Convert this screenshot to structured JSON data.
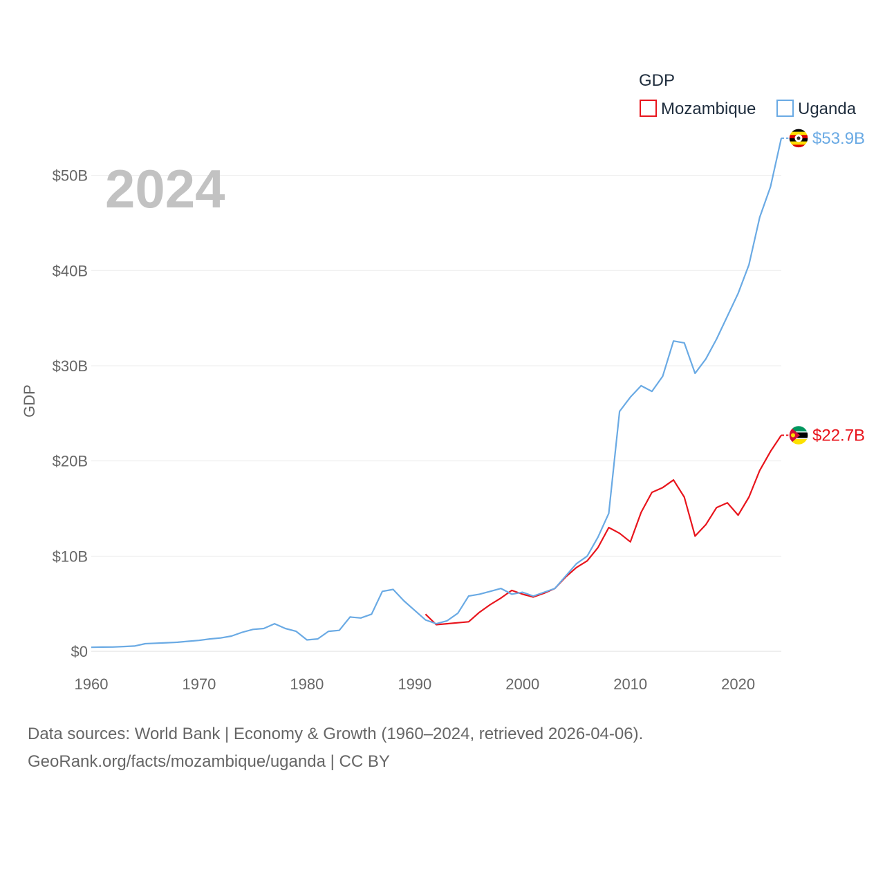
{
  "chart_data": {
    "type": "line",
    "title": "GDP",
    "current_year_label": "2024",
    "xlabel": "",
    "ylabel": "GDP",
    "xlim": [
      1960,
      2024
    ],
    "ylim": [
      0,
      56
    ],
    "x_ticks": [
      1960,
      1970,
      1980,
      1990,
      2000,
      2010,
      2020
    ],
    "x_tick_labels": [
      "1960",
      "1970",
      "1980",
      "1990",
      "2000",
      "2010",
      "2020"
    ],
    "y_ticks": [
      0,
      10,
      20,
      30,
      40,
      50
    ],
    "y_tick_labels": [
      "$0",
      "$10B",
      "$20B",
      "$30B",
      "$40B",
      "$50B"
    ],
    "units": "billions USD",
    "legend": {
      "title": "GDP",
      "placement": "top-right"
    },
    "series": [
      {
        "name": "Mozambique",
        "color": "#e8141c",
        "flag_icon": "mozambique-flag-icon",
        "end_label": "$22.7B",
        "x": [
          1991,
          1992,
          1993,
          1994,
          1995,
          1996,
          1997,
          1998,
          1999,
          2000,
          2001,
          2002,
          2003,
          2004,
          2005,
          2006,
          2007,
          2008,
          2009,
          2010,
          2011,
          2012,
          2013,
          2014,
          2015,
          2016,
          2017,
          2018,
          2019,
          2020,
          2021,
          2022,
          2023,
          2024
        ],
        "values": [
          3.9,
          2.8,
          2.9,
          3.0,
          3.1,
          4.1,
          4.9,
          5.6,
          6.4,
          6.0,
          5.7,
          6.1,
          6.6,
          7.8,
          8.8,
          9.5,
          10.9,
          13.0,
          12.4,
          11.5,
          14.6,
          16.7,
          17.2,
          18.0,
          16.2,
          12.1,
          13.3,
          15.1,
          15.6,
          14.3,
          16.2,
          19.0,
          21.0,
          22.7
        ]
      },
      {
        "name": "Uganda",
        "color": "#6aaae4",
        "flag_icon": "uganda-flag-icon",
        "end_label": "$53.9B",
        "x": [
          1960,
          1961,
          1962,
          1963,
          1964,
          1965,
          1966,
          1967,
          1968,
          1969,
          1970,
          1971,
          1972,
          1973,
          1974,
          1975,
          1976,
          1977,
          1978,
          1979,
          1980,
          1981,
          1982,
          1983,
          1984,
          1985,
          1986,
          1987,
          1988,
          1989,
          1990,
          1991,
          1992,
          1993,
          1994,
          1995,
          1996,
          1997,
          1998,
          1999,
          2000,
          2001,
          2002,
          2003,
          2004,
          2005,
          2006,
          2007,
          2008,
          2009,
          2010,
          2011,
          2012,
          2013,
          2014,
          2015,
          2016,
          2017,
          2018,
          2019,
          2020,
          2021,
          2022,
          2023,
          2024
        ],
        "values": [
          0.42,
          0.44,
          0.45,
          0.5,
          0.55,
          0.8,
          0.85,
          0.9,
          0.95,
          1.05,
          1.15,
          1.3,
          1.4,
          1.6,
          2.0,
          2.3,
          2.4,
          2.9,
          2.4,
          2.1,
          1.2,
          1.3,
          2.1,
          2.2,
          3.6,
          3.5,
          3.9,
          6.3,
          6.5,
          5.3,
          4.3,
          3.3,
          2.9,
          3.2,
          4.0,
          5.8,
          6.0,
          6.3,
          6.6,
          6.0,
          6.2,
          5.8,
          6.2,
          6.6,
          7.9,
          9.2,
          10.0,
          12.0,
          14.5,
          25.2,
          26.7,
          27.9,
          27.3,
          28.9,
          32.6,
          32.4,
          29.2,
          30.7,
          32.8,
          35.2,
          37.6,
          40.6,
          45.6,
          48.8,
          53.9
        ]
      }
    ]
  },
  "footer": {
    "source_line": "Data sources: World Bank | Economy & Growth (1960–2024, retrieved 2026-04-06).",
    "url_line": "GeoRank.org/facts/mozambique/uganda | CC BY"
  }
}
